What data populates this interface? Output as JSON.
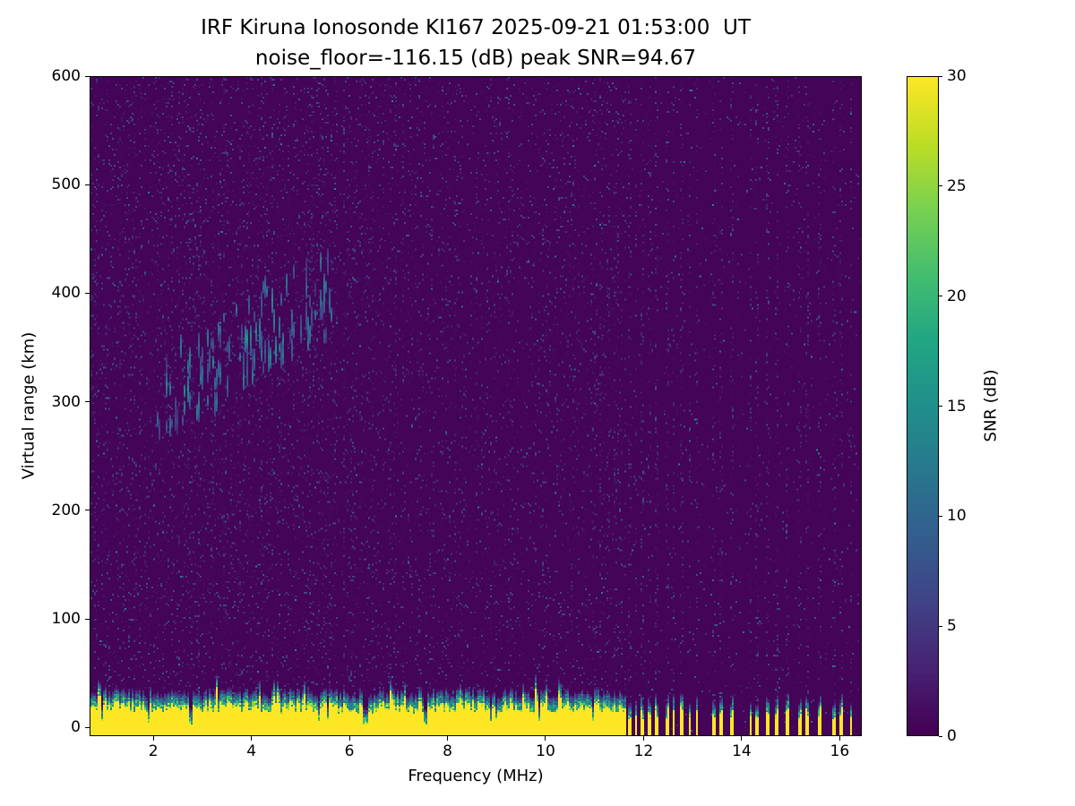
{
  "figure": {
    "title": "IRF Kiruna Ionosonde KI167 2025-09-21 01:53:00  UT",
    "subtitle": "noise_floor=-116.15 (dB) peak SNR=94.67"
  },
  "axes": {
    "x": {
      "label": "Frequency (MHz)",
      "min": 0.7,
      "max": 16.45,
      "ticks": [
        2,
        4,
        6,
        8,
        10,
        12,
        14,
        16
      ]
    },
    "y": {
      "label": "Virtual range (km)",
      "min": -8,
      "max": 600,
      "ticks": [
        0,
        100,
        200,
        300,
        400,
        500,
        600
      ]
    }
  },
  "colorbar": {
    "label": "SNR (dB)",
    "min": 0,
    "max": 30,
    "ticks": [
      0,
      5,
      10,
      15,
      20,
      25,
      30
    ]
  },
  "chart_data": {
    "type": "heatmap",
    "title": "IRF Kiruna Ionosonde KI167 2025-09-21 01:53:00  UT",
    "subtitle": "noise_floor=-116.15 (dB) peak SNR=94.67",
    "station": "IRF Kiruna Ionosonde KI167",
    "timestamp_ut": "2025-09-21 01:53:00",
    "noise_floor_db": -116.15,
    "peak_snr_db": 94.67,
    "xlabel": "Frequency (MHz)",
    "ylabel": "Virtual range (km)",
    "xlim": [
      0.7,
      16.45
    ],
    "ylim": [
      -8,
      600
    ],
    "colormap": "viridis",
    "value_range_db": [
      0,
      30
    ],
    "legend_position": "right-colorbar",
    "grid": false,
    "render_seed": 42,
    "features": {
      "ground_clutter_band": {
        "description": "saturated yellow (SNR>=30 dB) ground-clutter band along the bottom with ragged teal upper fringe",
        "freq_range_mhz": [
          0.7,
          11.65
        ],
        "top_range_km_min": 16,
        "top_range_km_max": 36,
        "snr_db": 30,
        "gap_freqs_mhz": [
          2.75,
          6.3,
          6.36,
          7.55
        ]
      },
      "rfi_stripes": {
        "description": "sparse vertical yellow stripes at the bottom and faint full-height speckle columns above 11.65 MHz",
        "freq_range_mhz": [
          11.65,
          16.45
        ],
        "stripe_freqs_mhz": [
          11.72,
          11.85,
          11.98,
          12.12,
          12.28,
          12.5,
          12.62,
          12.78,
          12.95,
          13.1,
          13.45,
          13.58,
          13.82,
          14.2,
          14.32,
          14.55,
          14.72,
          14.95,
          15.2,
          15.35,
          15.6,
          15.9,
          16.05,
          16.25
        ],
        "stripe_height_km": [
          8,
          20
        ]
      },
      "ionospheric_echo_trace": {
        "description": "diffuse teal F-layer echo trace of short vertical dashes rising from ~285 km at 2.1 MHz to ~375 km at 5.6 MHz",
        "points": [
          {
            "f": 2.1,
            "r": 285
          },
          {
            "f": 2.4,
            "r": 290
          },
          {
            "f": 2.8,
            "r": 297
          },
          {
            "f": 3.2,
            "r": 308
          },
          {
            "f": 3.6,
            "r": 322
          },
          {
            "f": 4.0,
            "r": 335
          },
          {
            "f": 4.4,
            "r": 348
          },
          {
            "f": 4.8,
            "r": 358
          },
          {
            "f": 5.2,
            "r": 366
          },
          {
            "f": 5.6,
            "r": 374
          }
        ],
        "snr_db_range": [
          4,
          14
        ],
        "vertical_spread_km": 75
      },
      "background_speckle": {
        "description": "low-level purple/blue speckle noise, denser below 11.65 MHz and below 6.5 MHz",
        "snr_db_range": [
          0,
          8
        ],
        "density_left": 0.08,
        "density_right": 0.02,
        "boundary_mhz": 11.65
      }
    }
  }
}
